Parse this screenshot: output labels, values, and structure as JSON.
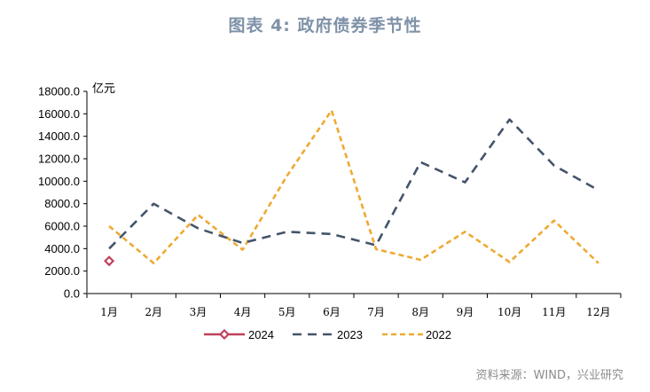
{
  "header": {
    "title": "图表 4:  政府债券季节性"
  },
  "footer": {
    "source": "资料来源：WIND，兴业研究"
  },
  "colors": {
    "s2024": "#c0415a",
    "s2023": "#44546a",
    "s2022": "#eeaa33",
    "title": "#7f92a8",
    "axis": "#000000"
  },
  "chart_data": {
    "type": "line",
    "title": "图表 4:  政府债券季节性",
    "xlabel": "",
    "ylabel": "亿元",
    "ylim": [
      0,
      18000
    ],
    "yticks": [
      "0.0",
      "2000.0",
      "4000.0",
      "6000.0",
      "8000.0",
      "10000.0",
      "12000.0",
      "14000.0",
      "16000.0",
      "18000.0"
    ],
    "grid": false,
    "legend_position": "bottom",
    "categories": [
      "1月",
      "2月",
      "3月",
      "4月",
      "5月",
      "6月",
      "7月",
      "8月",
      "9月",
      "10月",
      "11月",
      "12月"
    ],
    "series": [
      {
        "name": "2024",
        "style": "solid-diamond-marker",
        "values": [
          2900
        ]
      },
      {
        "name": "2023",
        "style": "long-dash",
        "values": [
          4000,
          8000,
          5800,
          4500,
          5500,
          5300,
          4300,
          11700,
          9900,
          15500,
          11400,
          9200
        ]
      },
      {
        "name": "2022",
        "style": "short-dash",
        "values": [
          6000,
          2700,
          7000,
          3900,
          10500,
          16300,
          3950,
          3000,
          5500,
          2800,
          6500,
          2700
        ]
      }
    ]
  }
}
